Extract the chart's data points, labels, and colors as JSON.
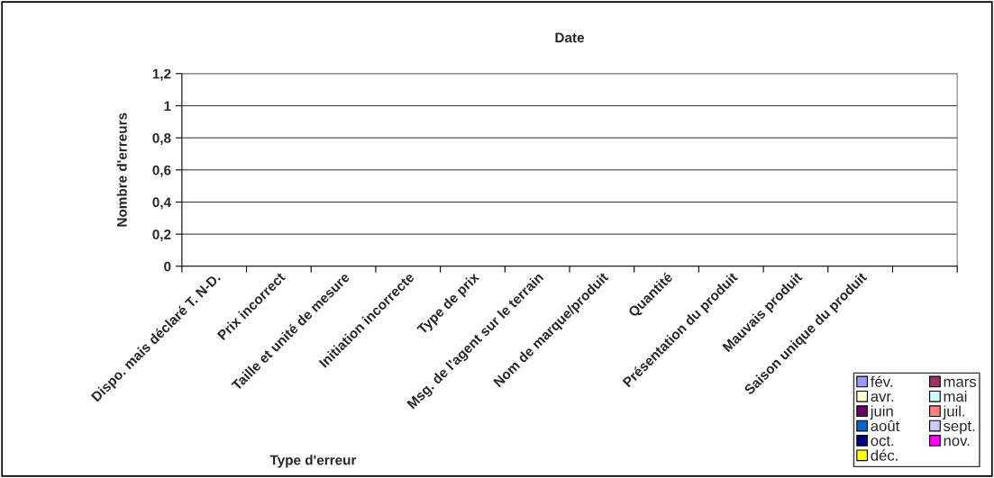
{
  "chart_data": {
    "type": "bar",
    "title": "Date",
    "xlabel": "Type d'erreur",
    "ylabel": "Nombre d'erreurs",
    "categories": [
      "Dispo. mais déclaré T. N-D.",
      "Prix incorrect",
      "Taille et unité de mesure",
      "Initiation incorrecte",
      "Type de prix",
      "Msg. de l'agent sur le terrain",
      "Nom de marque/produit",
      "Quantité",
      "Présentation du produit",
      "Mauvais produit",
      "Saison unique du produit",
      null
    ],
    "series": [
      {
        "name": "fév.",
        "color": "#9999ff",
        "values": [
          0,
          0,
          0,
          0,
          0,
          0,
          0,
          0,
          0,
          0,
          0,
          0
        ]
      },
      {
        "name": "mars",
        "color": "#993366",
        "values": [
          0,
          0,
          0,
          0,
          0,
          0,
          0,
          0,
          0,
          0,
          0,
          0
        ]
      },
      {
        "name": "avr.",
        "color": "#ffffcc",
        "values": [
          0,
          0,
          0,
          0,
          0,
          0,
          0,
          0,
          0,
          0,
          0,
          0
        ]
      },
      {
        "name": "mai",
        "color": "#ccffff",
        "values": [
          0,
          0,
          0,
          0,
          0,
          0,
          0,
          0,
          0,
          0,
          0,
          0
        ]
      },
      {
        "name": "juin",
        "color": "#660066",
        "values": [
          0,
          0,
          0,
          0,
          0,
          0,
          0,
          0,
          0,
          0,
          0,
          0
        ]
      },
      {
        "name": "juil.",
        "color": "#ff8080",
        "values": [
          0,
          0,
          0,
          0,
          0,
          0,
          0,
          0,
          0,
          0,
          0,
          0
        ]
      },
      {
        "name": "août",
        "color": "#0066cc",
        "values": [
          0,
          0,
          0,
          0,
          0,
          0,
          0,
          0,
          0,
          0,
          0,
          0
        ]
      },
      {
        "name": "sept.",
        "color": "#ccccff",
        "values": [
          0,
          0,
          0,
          0,
          0,
          0,
          0,
          0,
          0,
          0,
          0,
          0
        ]
      },
      {
        "name": "oct.",
        "color": "#000080",
        "values": [
          0,
          0,
          0,
          0,
          0,
          0,
          0,
          0,
          0,
          0,
          0,
          0
        ]
      },
      {
        "name": "nov.",
        "color": "#ff00ff",
        "values": [
          0,
          0,
          0,
          0,
          0,
          0,
          0,
          0,
          0,
          0,
          0,
          0
        ]
      },
      {
        "name": "déc.",
        "color": "#ffff00",
        "values": [
          0,
          0,
          0,
          0,
          0,
          0,
          0,
          0,
          0,
          0,
          0,
          0
        ]
      }
    ],
    "ylim": [
      0,
      1.2
    ],
    "yticks": [
      0,
      {
        "value": 0.2,
        "label": "0,2"
      },
      {
        "value": 0.4,
        "label": "0,4"
      },
      {
        "value": 0.6,
        "label": "0,6"
      },
      {
        "value": 0.8,
        "label": "0,8"
      },
      1,
      {
        "value": 1.2,
        "label": "1,2"
      }
    ],
    "grid": "y",
    "legend": "bottom right"
  }
}
